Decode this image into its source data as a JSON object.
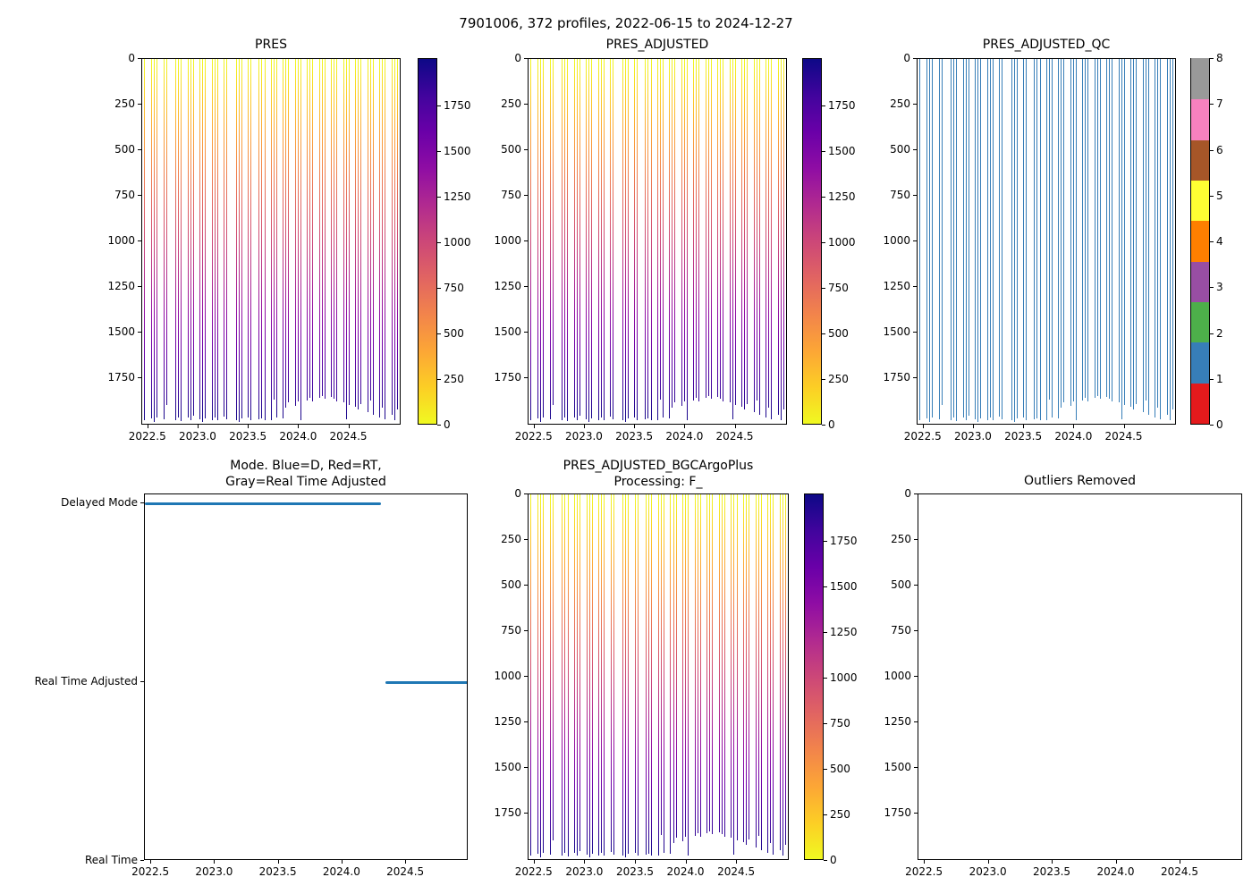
{
  "figure": {
    "suptitle": "7901006, 372 profiles, 2022-06-15 to 2024-12-27",
    "float_id": "7901006",
    "profile_count": 372,
    "date_range": "2022-06-15 to 2024-12-27",
    "background": "#ffffff"
  },
  "colors": {
    "plasma_r_stops": [
      "#f0f921",
      "#fcce25",
      "#fca636",
      "#f2844b",
      "#e16462",
      "#cc4778",
      "#b12a90",
      "#8f0da4",
      "#6a00a8",
      "#41049d",
      "#0d0887"
    ],
    "qc_line": "#377eb8",
    "mode_line": "#1f77b4",
    "axis": "#000000"
  },
  "profiles": [
    [
      2022.455,
      1980
    ],
    [
      2022.53,
      1972
    ],
    [
      2022.557,
      1988
    ],
    [
      2022.584,
      1965
    ],
    [
      2022.65,
      1975
    ],
    [
      2022.677,
      1895
    ],
    [
      2022.77,
      1982
    ],
    [
      2022.797,
      1968
    ],
    [
      2022.824,
      1986
    ],
    [
      2022.89,
      1966
    ],
    [
      2022.917,
      1978
    ],
    [
      2022.944,
      1958
    ],
    [
      2023.01,
      1976
    ],
    [
      2023.037,
      1988
    ],
    [
      2023.064,
      1970
    ],
    [
      2023.13,
      1980
    ],
    [
      2023.157,
      1968
    ],
    [
      2023.184,
      1978
    ],
    [
      2023.25,
      1962
    ],
    [
      2023.277,
      1976
    ],
    [
      2023.37,
      1978
    ],
    [
      2023.397,
      1988
    ],
    [
      2023.424,
      1972
    ],
    [
      2023.49,
      1968
    ],
    [
      2023.517,
      1980
    ],
    [
      2023.6,
      1976
    ],
    [
      2023.627,
      1972
    ],
    [
      2023.654,
      1978
    ],
    [
      2023.72,
      1978
    ],
    [
      2023.747,
      1870
    ],
    [
      2023.774,
      1965
    ],
    [
      2023.84,
      1972
    ],
    [
      2023.867,
      1912
    ],
    [
      2023.894,
      1882
    ],
    [
      2023.96,
      1900
    ],
    [
      2023.987,
      1878
    ],
    [
      2024.014,
      1980
    ],
    [
      2024.08,
      1872
    ],
    [
      2024.107,
      1860
    ],
    [
      2024.134,
      1878
    ],
    [
      2024.2,
      1856
    ],
    [
      2024.227,
      1848
    ],
    [
      2024.254,
      1862
    ],
    [
      2024.32,
      1852
    ],
    [
      2024.347,
      1864
    ],
    [
      2024.374,
      1876
    ],
    [
      2024.44,
      1884
    ],
    [
      2024.467,
      1975
    ],
    [
      2024.494,
      1896
    ],
    [
      2024.56,
      1905
    ],
    [
      2024.587,
      1920
    ],
    [
      2024.614,
      1892
    ],
    [
      2024.68,
      1935
    ],
    [
      2024.707,
      1872
    ],
    [
      2024.734,
      1950
    ],
    [
      2024.8,
      1968
    ],
    [
      2024.827,
      1912
    ],
    [
      2024.854,
      1975
    ],
    [
      2024.92,
      1950
    ],
    [
      2024.947,
      1980
    ],
    [
      2024.974,
      1922
    ]
  ],
  "chart_data": [
    {
      "id": "pres",
      "type": "line",
      "title": "PRES",
      "description": "Vertical pressure profiles vs time, colored by pressure (dbar), plasma_r colormap, y axis inverted",
      "x_tick_values": [
        2022.5,
        2023.0,
        2023.5,
        2024.0,
        2024.5
      ],
      "x_tick_labels": [
        "2022.5",
        "2023.0",
        "2023.5",
        "2024.0",
        "2024.5"
      ],
      "y_tick_values": [
        0,
        250,
        500,
        750,
        1000,
        1250,
        1500,
        1750
      ],
      "y_tick_labels": [
        "0",
        "250",
        "500",
        "750",
        "1000",
        "1250",
        "1500",
        "1750"
      ],
      "xlim": [
        2022.44,
        2025.02
      ],
      "ylim": [
        0,
        2010
      ],
      "y_inverted": true,
      "colormap": "plasma_r",
      "colorbar_tick_values": [
        0,
        250,
        500,
        750,
        1000,
        1250,
        1500,
        1750
      ],
      "colorbar_tick_labels": [
        "0",
        "250",
        "500",
        "750",
        "1000",
        "1250",
        "1500",
        "1750"
      ],
      "series": "profiles"
    },
    {
      "id": "pres_adjusted",
      "type": "line",
      "title": "PRES_ADJUSTED",
      "x_tick_values": [
        2022.5,
        2023.0,
        2023.5,
        2024.0,
        2024.5
      ],
      "x_tick_labels": [
        "2022.5",
        "2023.0",
        "2023.5",
        "2024.0",
        "2024.5"
      ],
      "y_tick_values": [
        0,
        250,
        500,
        750,
        1000,
        1250,
        1500,
        1750
      ],
      "y_tick_labels": [
        "0",
        "250",
        "500",
        "750",
        "1000",
        "1250",
        "1500",
        "1750"
      ],
      "xlim": [
        2022.44,
        2025.02
      ],
      "ylim": [
        0,
        2010
      ],
      "y_inverted": true,
      "colormap": "plasma_r",
      "colorbar_tick_values": [
        0,
        250,
        500,
        750,
        1000,
        1250,
        1500,
        1750
      ],
      "colorbar_tick_labels": [
        "0",
        "250",
        "500",
        "750",
        "1000",
        "1250",
        "1500",
        "1750"
      ],
      "series": "profiles"
    },
    {
      "id": "pres_adjusted_qc",
      "type": "line",
      "title": "PRES_ADJUSTED_QC",
      "line_color": "#377eb8",
      "qc_flag_shown": 1,
      "x_tick_values": [
        2022.5,
        2023.0,
        2023.5,
        2024.0,
        2024.5
      ],
      "x_tick_labels": [
        "2022.5",
        "2023.0",
        "2023.5",
        "2024.0",
        "2024.5"
      ],
      "y_tick_values": [
        0,
        250,
        500,
        750,
        1000,
        1250,
        1500,
        1750
      ],
      "y_tick_labels": [
        "0",
        "250",
        "500",
        "750",
        "1000",
        "1250",
        "1500",
        "1750"
      ],
      "xlim": [
        2022.44,
        2025.02
      ],
      "ylim": [
        0,
        2010
      ],
      "y_inverted": true,
      "colorbar_tick_values": [
        0,
        1,
        2,
        3,
        4,
        5,
        6,
        7,
        8
      ],
      "colorbar_tick_labels": [
        "0",
        "1",
        "2",
        "3",
        "4",
        "5",
        "6",
        "7",
        "8"
      ],
      "colorbar_colors_bottom_to_top": [
        "#e41a1c",
        "#377eb8",
        "#4daf4a",
        "#984ea3",
        "#ff7f00",
        "#ffff33",
        "#a65628",
        "#f781bf",
        "#999999"
      ],
      "series": "profiles"
    },
    {
      "id": "mode",
      "type": "line",
      "title": "Mode. Blue=D, Red=RT,\nGray=Real Time Adjusted",
      "categories_top_to_bottom": [
        "Delayed Mode",
        "Real Time Adjusted",
        "Real Time"
      ],
      "x_tick_values": [
        2022.5,
        2023.0,
        2023.5,
        2024.0,
        2024.5
      ],
      "x_tick_labels": [
        "2022.5",
        "2023.0",
        "2023.5",
        "2024.0",
        "2024.5"
      ],
      "xlim": [
        2022.45,
        2024.99
      ],
      "line_color": "#1f77b4",
      "segments": [
        {
          "category": "Delayed Mode",
          "x_start": 2022.45,
          "x_end": 2024.3
        },
        {
          "category": "Real Time Adjusted",
          "x_start": 2024.34,
          "x_end": 2024.99
        }
      ]
    },
    {
      "id": "pres_adjusted_bgc",
      "type": "line",
      "title": "PRES_ADJUSTED_BGCArgoPlus\nProcessing: F_",
      "x_tick_values": [
        2022.5,
        2023.0,
        2023.5,
        2024.0,
        2024.5
      ],
      "x_tick_labels": [
        "2022.5",
        "2023.0",
        "2023.5",
        "2024.0",
        "2024.5"
      ],
      "y_tick_values": [
        0,
        250,
        500,
        750,
        1000,
        1250,
        1500,
        1750
      ],
      "y_tick_labels": [
        "0",
        "250",
        "500",
        "750",
        "1000",
        "1250",
        "1500",
        "1750"
      ],
      "xlim": [
        2022.44,
        2025.02
      ],
      "ylim": [
        0,
        2010
      ],
      "y_inverted": true,
      "colormap": "plasma_r",
      "colorbar_tick_values": [
        0,
        250,
        500,
        750,
        1000,
        1250,
        1500,
        1750
      ],
      "colorbar_tick_labels": [
        "0",
        "250",
        "500",
        "750",
        "1000",
        "1250",
        "1500",
        "1750"
      ],
      "series": "profiles"
    },
    {
      "id": "outliers_removed",
      "type": "line",
      "title": "Outliers Removed",
      "empty": true,
      "x_tick_values": [
        2022.5,
        2023.0,
        2023.5,
        2024.0,
        2024.5
      ],
      "x_tick_labels": [
        "2022.5",
        "2023.0",
        "2023.5",
        "2024.0",
        "2024.5"
      ],
      "y_tick_values": [
        0,
        250,
        500,
        750,
        1000,
        1250,
        1500,
        1750
      ],
      "y_tick_labels": [
        "0",
        "250",
        "500",
        "750",
        "1000",
        "1250",
        "1500",
        "1750"
      ],
      "xlim": [
        2022.45,
        2024.99
      ],
      "ylim": [
        0,
        2010
      ],
      "y_inverted": true
    }
  ]
}
